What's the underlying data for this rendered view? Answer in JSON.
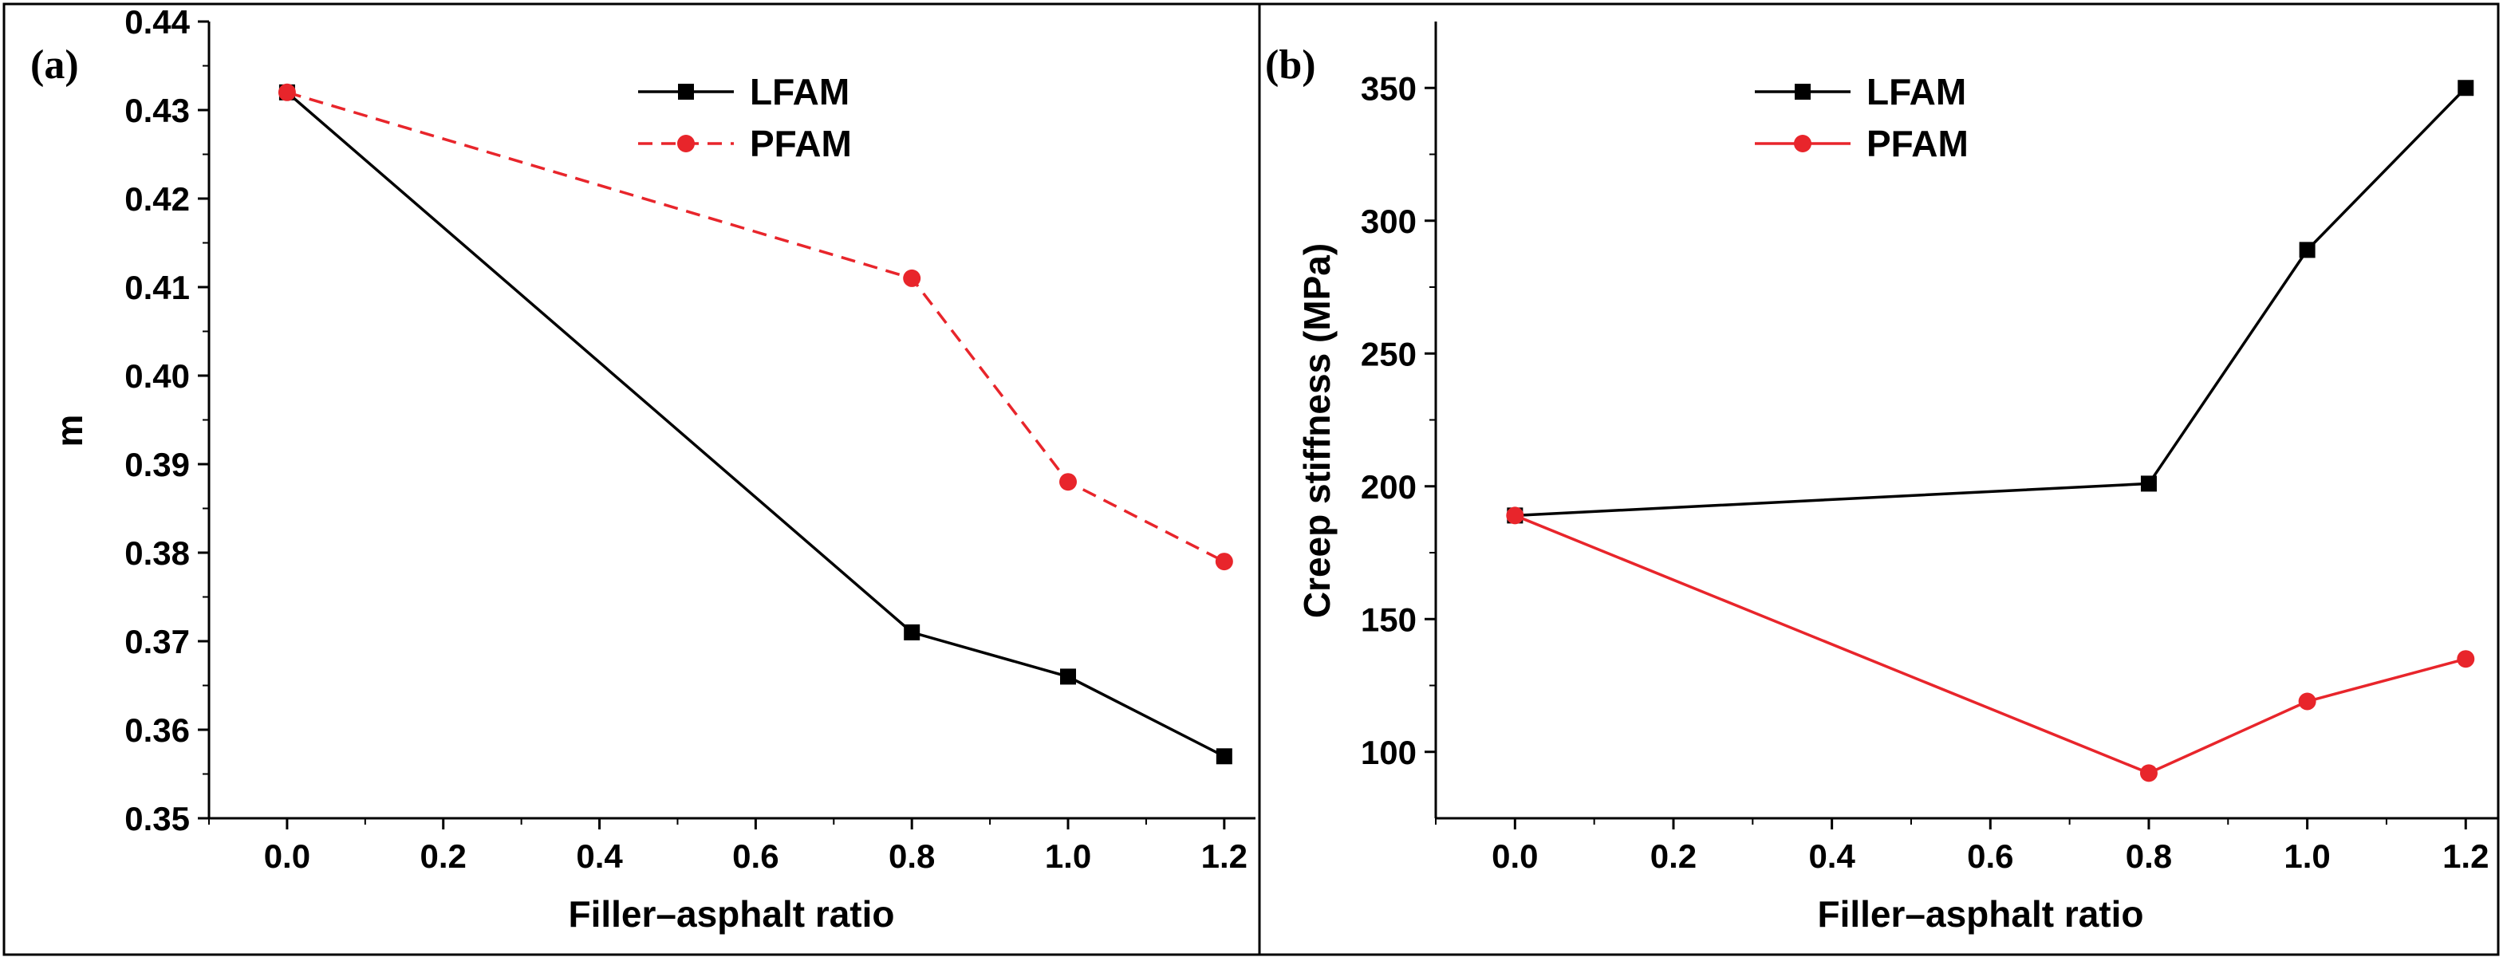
{
  "colors": {
    "lfam": "#000000",
    "pfam": "#e8252b",
    "frame": "#000000",
    "background": "#ffffff"
  },
  "chart_data": [
    {
      "type": "line",
      "panel_label": "(a)",
      "title": "",
      "xlabel": "Filler–asphalt ratio",
      "ylabel": "m",
      "xlim": [
        -0.1,
        1.24
      ],
      "ylim": [
        0.35,
        0.44
      ],
      "xticks": [
        0.0,
        0.2,
        0.4,
        0.6,
        0.8,
        1.0,
        1.2
      ],
      "xtick_labels": [
        "0.0",
        "0.2",
        "0.4",
        "0.6",
        "0.8",
        "1.0",
        "1.2"
      ],
      "yticks": [
        0.35,
        0.36,
        0.37,
        0.38,
        0.39,
        0.4,
        0.41,
        0.42,
        0.43,
        0.44
      ],
      "ytick_labels": [
        "0.35",
        "0.36",
        "0.37",
        "0.38",
        "0.39",
        "0.40",
        "0.41",
        "0.42",
        "0.43",
        "0.44"
      ],
      "legend_position": "top-center",
      "series": [
        {
          "name": "LFAM",
          "x": [
            0.0,
            0.8,
            1.0,
            1.2
          ],
          "values": [
            0.432,
            0.371,
            0.366,
            0.357
          ],
          "marker": "square",
          "dash": "solid",
          "color": "#000000"
        },
        {
          "name": "PFAM",
          "x": [
            0.0,
            0.8,
            1.0,
            1.2
          ],
          "values": [
            0.432,
            0.411,
            0.388,
            0.379
          ],
          "marker": "circle",
          "dash": "dashed",
          "color": "#e8252b"
        }
      ]
    },
    {
      "type": "line",
      "panel_label": "(b)",
      "title": "",
      "xlabel": "Filler–asphalt ratio",
      "ylabel": "Creep stiffness (MPa)",
      "xlim": [
        -0.1,
        1.24
      ],
      "ylim": [
        75,
        375
      ],
      "xticks": [
        0.0,
        0.2,
        0.4,
        0.6,
        0.8,
        1.0,
        1.2
      ],
      "xtick_labels": [
        "0.0",
        "0.2",
        "0.4",
        "0.6",
        "0.8",
        "1.0",
        "1.2"
      ],
      "yticks": [
        100,
        150,
        200,
        250,
        300,
        350
      ],
      "ytick_labels": [
        "100",
        "150",
        "200",
        "250",
        "300",
        "350"
      ],
      "legend_position": "top-center",
      "series": [
        {
          "name": "LFAM",
          "x": [
            0.0,
            0.8,
            1.0,
            1.2
          ],
          "values": [
            189,
            201,
            289,
            350
          ],
          "marker": "square",
          "dash": "solid",
          "color": "#000000"
        },
        {
          "name": "PFAM",
          "x": [
            0.0,
            0.8,
            1.0,
            1.2
          ],
          "values": [
            189,
            92,
            119,
            135
          ],
          "marker": "circle",
          "dash": "solid",
          "color": "#e8252b"
        }
      ]
    }
  ]
}
